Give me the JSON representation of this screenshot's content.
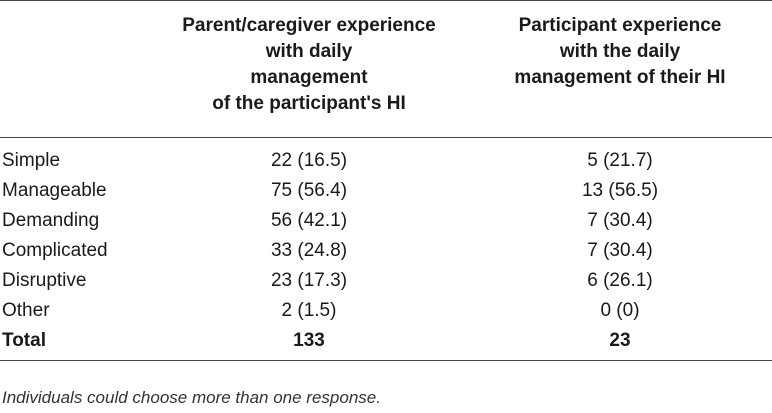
{
  "table": {
    "headers": {
      "col1_lines": [
        "Parent/caregiver experience",
        "with daily",
        "management",
        "of the participant's HI"
      ],
      "col2_lines": [
        "Participant experience",
        "with the daily",
        "management of their HI"
      ]
    },
    "rows": [
      {
        "label": "Simple",
        "col1": "22 (16.5)",
        "col2": "5 (21.7)"
      },
      {
        "label": "Manageable",
        "col1": "75 (56.4)",
        "col2": "13 (56.5)"
      },
      {
        "label": "Demanding",
        "col1": "56 (42.1)",
        "col2": "7 (30.4)"
      },
      {
        "label": "Complicated",
        "col1": "33 (24.8)",
        "col2": "7 (30.4)"
      },
      {
        "label": "Disruptive",
        "col1": "23 (17.3)",
        "col2": "6 (26.1)"
      },
      {
        "label": "Other",
        "col1": "2 (1.5)",
        "col2": "0 (0)"
      }
    ],
    "total": {
      "label": "Total",
      "col1": "133",
      "col2": "23"
    }
  },
  "footnote": "Individuals could choose more than one response."
}
